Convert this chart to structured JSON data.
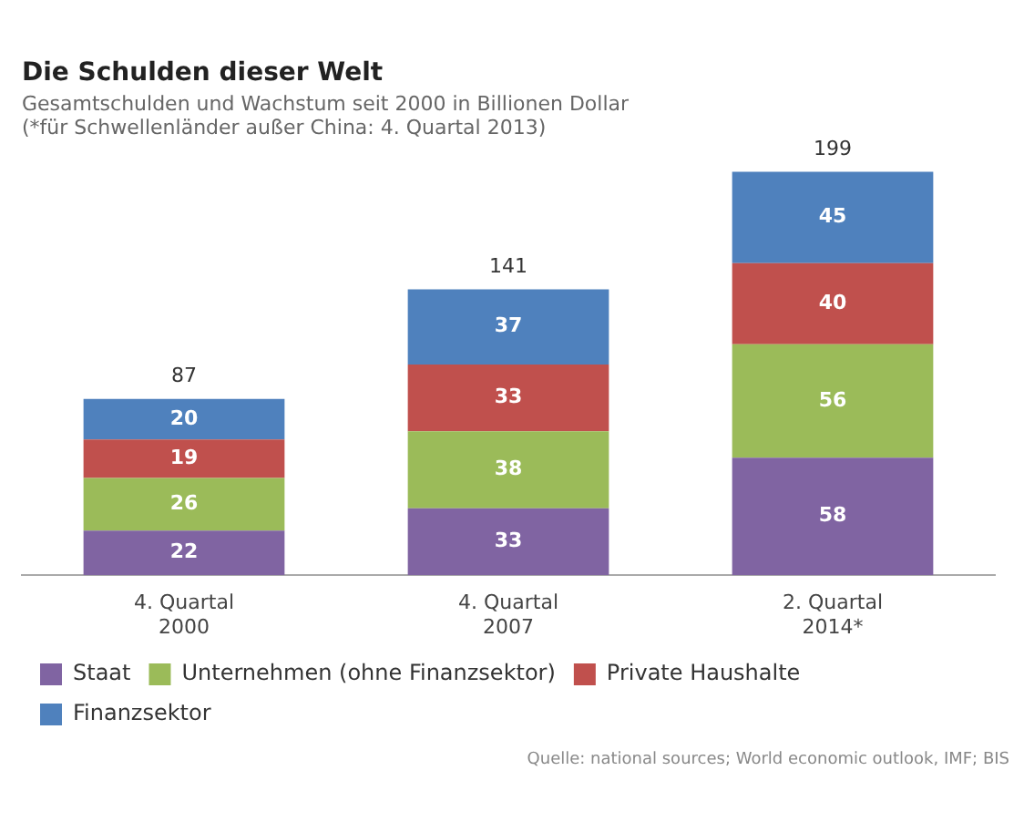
{
  "chart_data": {
    "type": "bar",
    "title": "Die Schulden dieser Welt",
    "subtitle": "Gesamtschulden und Wachstum seit 2000 in Billionen Dollar\n(*für Schwellenländer außer China: 4. Quartal 2013)",
    "categories": [
      "4. Quartal 2000",
      "4. Quartal 2007",
      "2. Quartal 2014*"
    ],
    "series": [
      {
        "name": "Staat",
        "color": "#8064a2",
        "values": [
          22,
          33,
          58
        ]
      },
      {
        "name": "Unternehmen (ohne Finanzsektor)",
        "color": "#9bbb59",
        "values": [
          26,
          38,
          56
        ]
      },
      {
        "name": "Private Haushalte",
        "color": "#c0504d",
        "values": [
          19,
          33,
          40
        ]
      },
      {
        "name": "Finanzsektor",
        "color": "#4f81bd",
        "values": [
          20,
          37,
          45
        ]
      }
    ],
    "stacked": true,
    "data_labels": true,
    "totals": [
      "87",
      "141",
      "199"
    ],
    "grid": false,
    "legend": "bottom",
    "tick_labels": "x",
    "annotations": [
      "Quelle: national sources; World economic outlook, IMF; BIS"
    ]
  }
}
